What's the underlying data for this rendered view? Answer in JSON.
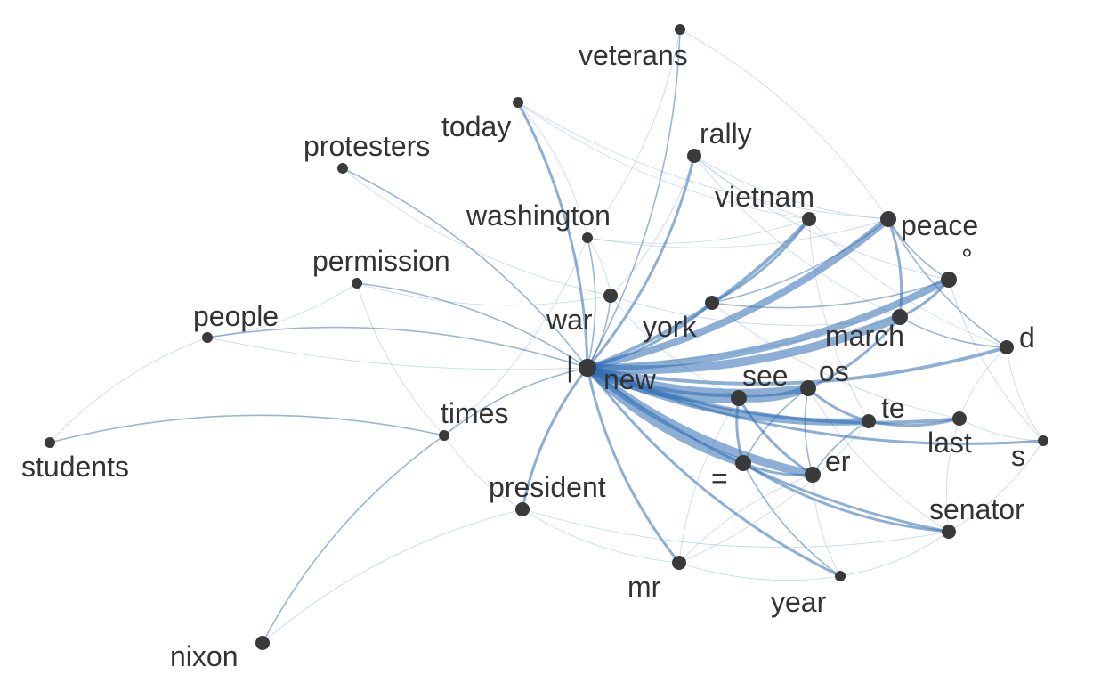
{
  "colors": {
    "edge": "#2f6db5",
    "node": "#3a3a3a",
    "label": "#333333",
    "background": "#ffffff"
  },
  "nodes": [
    {
      "id": "veterans",
      "label": "veterans",
      "weight": 1
    },
    {
      "id": "today",
      "label": "today",
      "weight": 1
    },
    {
      "id": "rally",
      "label": "rally",
      "weight": 2
    },
    {
      "id": "protesters",
      "label": "protesters",
      "weight": 1
    },
    {
      "id": "vietnam",
      "label": "vietnam",
      "weight": 2
    },
    {
      "id": "peace",
      "label": "peace",
      "weight": 3
    },
    {
      "id": "washington",
      "label": "washington",
      "weight": 1
    },
    {
      "id": "permission",
      "label": "permission",
      "weight": 1
    },
    {
      "id": "degree",
      "label": "°",
      "weight": 3
    },
    {
      "id": "war",
      "label": "war",
      "weight": 2
    },
    {
      "id": "people",
      "label": "people",
      "weight": 1
    },
    {
      "id": "march",
      "label": "march",
      "weight": 3
    },
    {
      "id": "york",
      "label": "york",
      "weight": 2
    },
    {
      "id": "d",
      "label": "d",
      "weight": 2
    },
    {
      "id": "bar",
      "label": "|",
      "weight": 4
    },
    {
      "id": "new",
      "label": "new",
      "weight": 4
    },
    {
      "id": "see",
      "label": "see",
      "weight": 3
    },
    {
      "id": "os",
      "label": "os",
      "weight": 3
    },
    {
      "id": "te",
      "label": "te",
      "weight": 2
    },
    {
      "id": "times",
      "label": "times",
      "weight": 1
    },
    {
      "id": "last",
      "label": "last",
      "weight": 2
    },
    {
      "id": "students",
      "label": "students",
      "weight": 1
    },
    {
      "id": "s",
      "label": "s",
      "weight": 1
    },
    {
      "id": "equals",
      "label": "=",
      "weight": 3
    },
    {
      "id": "er",
      "label": "er",
      "weight": 3
    },
    {
      "id": "president",
      "label": "president",
      "weight": 2
    },
    {
      "id": "senator",
      "label": "senator",
      "weight": 2
    },
    {
      "id": "mr",
      "label": "mr",
      "weight": 2
    },
    {
      "id": "year",
      "label": "year",
      "weight": 1
    },
    {
      "id": "nixon",
      "label": "nixon",
      "weight": 2
    }
  ],
  "edges": [
    [
      "new",
      "see",
      7
    ],
    [
      "new",
      "os",
      6
    ],
    [
      "new",
      "march",
      6
    ],
    [
      "new",
      "er",
      6
    ],
    [
      "new",
      "equals",
      6
    ],
    [
      "new",
      "peace",
      5
    ],
    [
      "new",
      "degree",
      5
    ],
    [
      "new",
      "d",
      4
    ],
    [
      "new",
      "te",
      5
    ],
    [
      "new",
      "vietnam",
      4
    ],
    [
      "new",
      "last",
      4
    ],
    [
      "new",
      "s",
      3
    ],
    [
      "new",
      "rally",
      3
    ],
    [
      "new",
      "today",
      3
    ],
    [
      "new",
      "veterans",
      2
    ],
    [
      "new",
      "protesters",
      2
    ],
    [
      "new",
      "permission",
      2
    ],
    [
      "new",
      "people",
      2
    ],
    [
      "new",
      "times",
      2
    ],
    [
      "new",
      "president",
      3
    ],
    [
      "new",
      "mr",
      3
    ],
    [
      "new",
      "year",
      3
    ],
    [
      "new",
      "senator",
      3
    ],
    [
      "new",
      "washington",
      2
    ],
    [
      "new",
      "war",
      2
    ],
    [
      "new",
      "york",
      3
    ],
    [
      "see",
      "os",
      5
    ],
    [
      "see",
      "equals",
      3
    ],
    [
      "see",
      "er",
      3
    ],
    [
      "os",
      "te",
      3
    ],
    [
      "os",
      "march",
      3
    ],
    [
      "os",
      "er",
      2
    ],
    [
      "os",
      "equals",
      2
    ],
    [
      "march",
      "degree",
      3
    ],
    [
      "march",
      "peace",
      3
    ],
    [
      "march",
      "d",
      2
    ],
    [
      "te",
      "last",
      3
    ],
    [
      "te",
      "er",
      2
    ],
    [
      "equals",
      "er",
      3
    ],
    [
      "equals",
      "senator",
      3
    ],
    [
      "equals",
      "year",
      2
    ],
    [
      "york",
      "vietnam",
      3
    ],
    [
      "york",
      "peace",
      2
    ],
    [
      "york",
      "degree",
      2
    ],
    [
      "peace",
      "degree",
      2
    ],
    [
      "peace",
      "d",
      2
    ],
    [
      "peace",
      "veterans",
      1
    ],
    [
      "vietnam",
      "d",
      1
    ],
    [
      "rally",
      "peace",
      1
    ],
    [
      "rally",
      "vietnam",
      1
    ],
    [
      "times",
      "students",
      2
    ],
    [
      "times",
      "nixon",
      2
    ],
    [
      "president",
      "nixon",
      1
    ],
    [
      "people",
      "students",
      1
    ],
    [
      "war",
      "rally",
      1
    ],
    [
      "war",
      "washington",
      1
    ],
    [
      "war",
      "see",
      1
    ],
    [
      "war",
      "march",
      1
    ],
    [
      "washington",
      "today",
      1
    ],
    [
      "washington",
      "veterans",
      1
    ],
    [
      "washington",
      "vietnam",
      1
    ],
    [
      "washington",
      "peace",
      1
    ],
    [
      "permission",
      "war",
      1
    ],
    [
      "permission",
      "times",
      1
    ],
    [
      "people",
      "march",
      1
    ],
    [
      "president",
      "mr",
      1
    ],
    [
      "president",
      "senator",
      1
    ],
    [
      "mr",
      "year",
      1
    ],
    [
      "mr",
      "te",
      1
    ],
    [
      "year",
      "senator",
      1
    ],
    [
      "last",
      "s",
      1
    ],
    [
      "senator",
      "s",
      1
    ],
    [
      "d",
      "s",
      1
    ],
    [
      "d",
      "last",
      1
    ],
    [
      "degree",
      "s",
      1
    ],
    [
      "last",
      "senator",
      1
    ],
    [
      "er",
      "year",
      1
    ],
    [
      "er",
      "mr",
      1
    ],
    [
      "see",
      "mr",
      1
    ],
    [
      "os",
      "senator",
      1
    ],
    [
      "times",
      "president",
      1
    ],
    [
      "times",
      "washington",
      1
    ],
    [
      "rally",
      "march",
      1
    ],
    [
      "rally",
      "degree",
      1
    ],
    [
      "vietnam",
      "te",
      1
    ],
    [
      "today",
      "peace",
      1
    ],
    [
      "today",
      "vietnam",
      1
    ],
    [
      "protesters",
      "war",
      1
    ],
    [
      "people",
      "permission",
      1
    ],
    [
      "york",
      "last",
      1
    ]
  ]
}
